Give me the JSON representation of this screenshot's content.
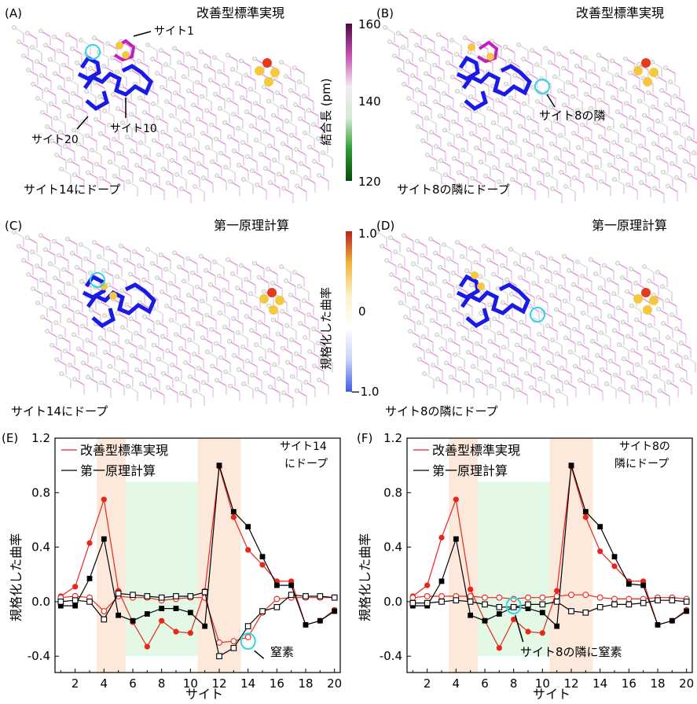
{
  "panels_top": [
    {
      "id": "A",
      "letter": "(A)",
      "method": "改善型標準実現",
      "doping_caption": "サイト14にドープ",
      "annotations": [
        "サイト1",
        "サイト10",
        "サイト20"
      ]
    },
    {
      "id": "B",
      "letter": "(B)",
      "method": "改善型標準実現",
      "doping_caption": "サイト8の隣にドープ",
      "annotations": [
        "サイト8の隣"
      ]
    },
    {
      "id": "C",
      "letter": "(C)",
      "method": "第一原理計算",
      "doping_caption": "サイト14にドープ",
      "annotations": []
    },
    {
      "id": "D",
      "letter": "(D)",
      "method": "第一原理計算",
      "doping_caption": "サイト8の隣にドープ",
      "annotations": []
    }
  ],
  "colorbar_bond": {
    "label": "結合長 (pm)",
    "ticks": [
      "160",
      "140",
      "120"
    ],
    "colors": [
      "#4b0b3f",
      "#c64fb0",
      "#f4e9f3",
      "#d3ebd3",
      "#2e9b32",
      "#0a4a0f"
    ]
  },
  "colorbar_curvature": {
    "label": "規格化した曲率",
    "ticks": [
      "1.0",
      "0",
      "−1.0"
    ],
    "colors": [
      "#b8201c",
      "#f2b43c",
      "#fbf1c8",
      "#ffffff",
      "#c9d4f8",
      "#3f5de3"
    ]
  },
  "chart_data": [
    {
      "panel": "(E)",
      "type": "line",
      "doping_label": [
        "サイト14",
        "にドープ"
      ],
      "xlabel": "サイト",
      "ylabel": "規格化した曲率",
      "xlim": [
        0.6,
        20.4
      ],
      "ylim": [
        -0.52,
        1.2
      ],
      "xticks": [
        "2",
        "4",
        "6",
        "8",
        "10",
        "12",
        "14",
        "16",
        "18",
        "20"
      ],
      "yticks": [
        "-0.4",
        "0.0",
        "0.4",
        "0.8",
        "1.2"
      ],
      "categories": [
        1,
        2,
        3,
        4,
        5,
        6,
        7,
        8,
        9,
        10,
        11,
        12,
        13,
        14,
        15,
        16,
        17,
        18,
        19,
        20
      ],
      "legend": [
        "改善型標準実現",
        "第一原理計算"
      ],
      "colors": {
        "improved": "#e8261c",
        "dft": "#000000",
        "shade_orange": "#fde9dc",
        "shade_green": "#e3f9e6",
        "highlight": "#2fd6e8"
      },
      "series": [
        {
          "name": "改善型標準実現",
          "marker": "filled-circle",
          "color": "#e8261c",
          "values": [
            0.04,
            0.11,
            0.43,
            0.75,
            0.08,
            -0.15,
            -0.33,
            -0.14,
            -0.22,
            -0.23,
            0.08,
            0.99,
            0.62,
            0.38,
            0.27,
            0.15,
            0.15,
            -0.17,
            -0.14,
            -0.06
          ]
        },
        {
          "name": "改善型標準実現",
          "marker": "open-circle",
          "color": "#e8261c",
          "values": [
            0.03,
            0.04,
            0.03,
            -0.07,
            0.04,
            0.03,
            0.03,
            0.01,
            0.02,
            0.03,
            0.03,
            -0.3,
            -0.29,
            -0.26,
            -0.08,
            0.02,
            0.03,
            0.03,
            0.03,
            0.03
          ]
        },
        {
          "name": "第一原理計算",
          "marker": "filled-square",
          "color": "#000000",
          "values": [
            -0.03,
            -0.03,
            0.17,
            0.46,
            -0.1,
            -0.14,
            -0.09,
            -0.05,
            -0.05,
            -0.08,
            -0.18,
            1.0,
            0.66,
            0.55,
            0.33,
            0.12,
            0.12,
            -0.17,
            -0.14,
            -0.07
          ]
        },
        {
          "name": "第一原理計算",
          "marker": "open-square",
          "color": "#000000",
          "values": [
            0.0,
            0.01,
            0.0,
            -0.13,
            0.06,
            0.05,
            0.04,
            0.03,
            0.04,
            0.04,
            0.07,
            -0.4,
            -0.34,
            -0.18,
            -0.07,
            -0.04,
            0.05,
            0.04,
            0.04,
            0.03
          ]
        }
      ],
      "regions": [
        {
          "from": 3.5,
          "to": 5.5,
          "color": "orange"
        },
        {
          "from": 5.5,
          "to": 10.5,
          "color": "green"
        },
        {
          "from": 10.5,
          "to": 13.5,
          "color": "orange"
        }
      ],
      "marker_annotation": {
        "text": "窒素",
        "site": 14,
        "value": -0.29
      }
    },
    {
      "panel": "(F)",
      "type": "line",
      "doping_label": [
        "サイト8の",
        "隣にドープ"
      ],
      "xlabel": "サイト",
      "ylabel": "規格化した曲率",
      "xlim": [
        0.6,
        20.4
      ],
      "ylim": [
        -0.52,
        1.2
      ],
      "xticks": [
        "2",
        "4",
        "6",
        "8",
        "10",
        "12",
        "14",
        "16",
        "18",
        "20"
      ],
      "yticks": [
        "-0.4",
        "0.0",
        "0.4",
        "0.8",
        "1.2"
      ],
      "categories": [
        1,
        2,
        3,
        4,
        5,
        6,
        7,
        8,
        9,
        10,
        11,
        12,
        13,
        14,
        15,
        16,
        17,
        18,
        19,
        20
      ],
      "legend": [
        "改善型標準実現",
        "第一原理計算"
      ],
      "colors": {
        "improved": "#e8261c",
        "dft": "#000000",
        "shade_orange": "#fde9dc",
        "shade_green": "#e3f9e6",
        "highlight": "#2fd6e8"
      },
      "series": [
        {
          "name": "改善型標準実現",
          "marker": "filled-circle",
          "color": "#e8261c",
          "values": [
            0.04,
            0.12,
            0.47,
            0.75,
            0.09,
            -0.14,
            -0.34,
            -0.13,
            -0.22,
            -0.23,
            0.08,
            0.99,
            0.62,
            0.37,
            0.26,
            0.15,
            0.15,
            -0.17,
            -0.14,
            -0.06
          ]
        },
        {
          "name": "改善型標準実現",
          "marker": "open-circle",
          "color": "#e8261c",
          "values": [
            0.03,
            0.04,
            0.04,
            0.04,
            0.04,
            0.03,
            0.03,
            0.02,
            0.03,
            0.03,
            0.04,
            0.05,
            0.05,
            0.03,
            0.02,
            0.02,
            0.02,
            0.03,
            0.03,
            0.02
          ]
        },
        {
          "name": "第一原理計算",
          "marker": "filled-square",
          "color": "#000000",
          "values": [
            -0.03,
            -0.03,
            0.15,
            0.46,
            -0.1,
            -0.14,
            -0.09,
            -0.04,
            -0.05,
            -0.08,
            -0.18,
            1.0,
            0.66,
            0.55,
            0.33,
            0.13,
            0.12,
            -0.17,
            -0.14,
            -0.07
          ]
        },
        {
          "name": "第一原理計算",
          "marker": "open-square",
          "color": "#000000",
          "values": [
            -0.01,
            -0.01,
            0.0,
            0.01,
            0.0,
            -0.02,
            -0.04,
            -0.04,
            -0.02,
            -0.02,
            0.0,
            -0.07,
            -0.08,
            -0.04,
            -0.02,
            -0.02,
            -0.01,
            0.01,
            0.01,
            0.0
          ]
        }
      ],
      "regions": [
        {
          "from": 3.5,
          "to": 5.5,
          "color": "orange"
        },
        {
          "from": 5.5,
          "to": 10.5,
          "color": "green"
        },
        {
          "from": 10.5,
          "to": 13.5,
          "color": "orange"
        }
      ],
      "marker_annotation": {
        "text": "サイト8の隣に窒素",
        "site": 8,
        "value": -0.03
      }
    }
  ]
}
